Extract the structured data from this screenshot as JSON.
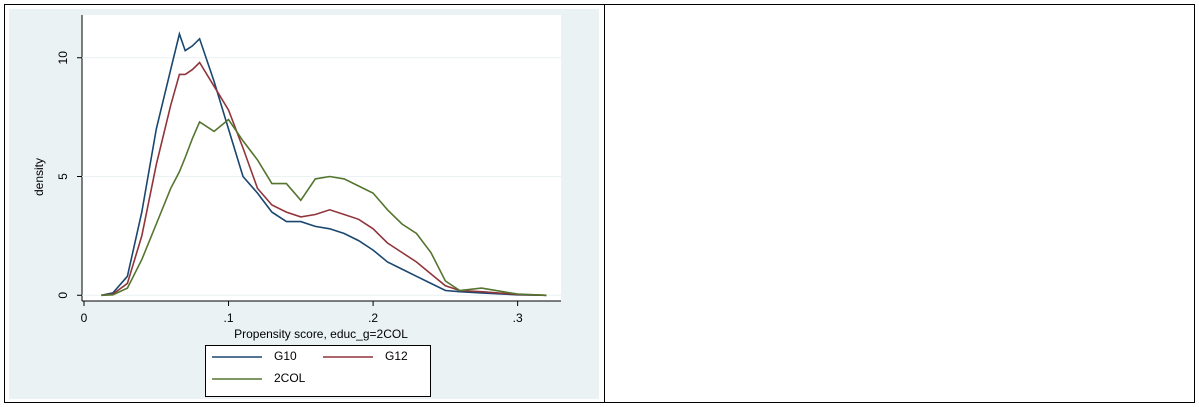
{
  "chart_data": {
    "type": "line",
    "xlabel": "Propensity score, educ_g=2COL",
    "ylabel": "density",
    "x": [
      0.012,
      0.02,
      0.03,
      0.04,
      0.05,
      0.06,
      0.066,
      0.07,
      0.075,
      0.08,
      0.09,
      0.1,
      0.11,
      0.12,
      0.13,
      0.14,
      0.15,
      0.16,
      0.17,
      0.18,
      0.19,
      0.2,
      0.21,
      0.22,
      0.23,
      0.24,
      0.25,
      0.26,
      0.275,
      0.3,
      0.32
    ],
    "series": [
      {
        "name": "G10",
        "color": "#1a476f",
        "values": [
          0,
          0.1,
          0.8,
          3.5,
          7,
          9.5,
          11,
          10.3,
          10.5,
          10.8,
          9,
          7,
          5,
          4.3,
          3.5,
          3.1,
          3.1,
          2.9,
          2.8,
          2.6,
          2.3,
          1.9,
          1.4,
          1.1,
          0.8,
          0.5,
          0.2,
          0.15,
          0.1,
          0.02,
          0
        ]
      },
      {
        "name": "G12",
        "color": "#90353b",
        "values": [
          0,
          0.05,
          0.5,
          2.5,
          5.5,
          8,
          9.3,
          9.3,
          9.5,
          9.8,
          8.8,
          7.8,
          6.2,
          4.5,
          3.8,
          3.5,
          3.3,
          3.4,
          3.6,
          3.4,
          3.2,
          2.8,
          2.2,
          1.8,
          1.4,
          0.9,
          0.4,
          0.2,
          0.15,
          0.03,
          0
        ]
      },
      {
        "name": "2COL",
        "color": "#55752f",
        "values": [
          0,
          0.02,
          0.3,
          1.5,
          3,
          4.5,
          5.2,
          5.8,
          6.6,
          7.3,
          6.9,
          7.4,
          6.5,
          5.7,
          4.7,
          4.7,
          4,
          4.9,
          5,
          4.9,
          4.6,
          4.3,
          3.6,
          3,
          2.6,
          1.8,
          0.6,
          0.2,
          0.3,
          0.05,
          0
        ]
      }
    ],
    "xlim": [
      0,
      0.33
    ],
    "ylim": [
      -0.2,
      11.8
    ],
    "xticks": [
      0,
      {
        "value": 0.1,
        "label": ".1"
      },
      {
        "value": 0.2,
        "label": ".2"
      },
      {
        "value": 0.3,
        "label": ".3"
      }
    ],
    "yticks": [
      0,
      5,
      10
    ],
    "grid": true
  }
}
